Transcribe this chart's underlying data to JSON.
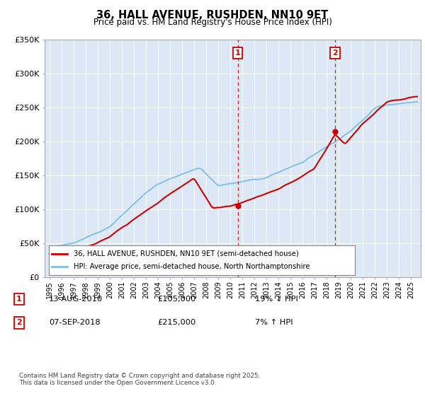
{
  "title": "36, HALL AVENUE, RUSHDEN, NN10 9ET",
  "subtitle": "Price paid vs. HM Land Registry's House Price Index (HPI)",
  "legend_line1": "36, HALL AVENUE, RUSHDEN, NN10 9ET (semi-detached house)",
  "legend_line2": "HPI: Average price, semi-detached house, North Northamptonshire",
  "footer": "Contains HM Land Registry data © Crown copyright and database right 2025.\nThis data is licensed under the Open Government Licence v3.0.",
  "sale1_label": "1",
  "sale1_date": "13-AUG-2010",
  "sale1_price": 105000,
  "sale1_price_str": "£105,000",
  "sale1_hpi_str": "19% ↓ HPI",
  "sale1_year": 2010.62,
  "sale2_label": "2",
  "sale2_date": "07-SEP-2018",
  "sale2_price": 215000,
  "sale2_price_str": "£215,000",
  "sale2_hpi_str": "7% ↑ HPI",
  "sale2_year": 2018.69,
  "hpi_color": "#7bbfe8",
  "price_color": "#cc0000",
  "plot_bg_color": "#dce8f5",
  "ylim": [
    0,
    350000
  ],
  "yticks": [
    0,
    50000,
    100000,
    150000,
    200000,
    250000,
    300000,
    350000
  ],
  "ytick_labels": [
    "£0",
    "£50K",
    "£100K",
    "£150K",
    "£200K",
    "£250K",
    "£300K",
    "£350K"
  ],
  "xlim_left": 1994.6,
  "xlim_right": 2025.8,
  "vline_color": "#cc0000",
  "grid_color": "white"
}
